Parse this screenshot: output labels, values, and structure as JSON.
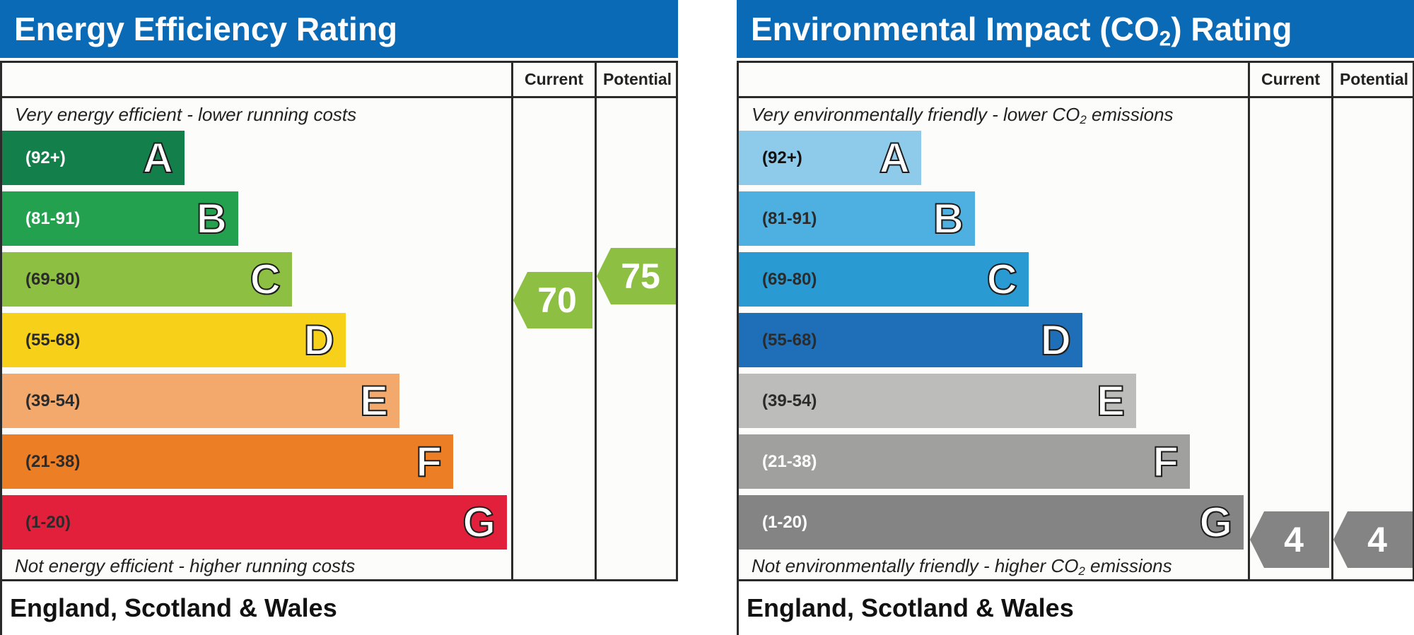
{
  "chart_data": [
    {
      "type": "bar",
      "title": "Energy Efficiency Rating",
      "top_note": "Very energy efficient - lower running costs",
      "bottom_note": "Not energy efficient - higher running costs",
      "columns": [
        "Current",
        "Potential"
      ],
      "bands": [
        {
          "letter": "A",
          "range": "(92+)",
          "color": "#137f4a",
          "text_color": "#ffffff"
        },
        {
          "letter": "B",
          "range": "(81-91)",
          "color": "#23a14f",
          "text_color": "#ffffff"
        },
        {
          "letter": "C",
          "range": "(69-80)",
          "color": "#8dbf43",
          "text_color": "#2b2b2b"
        },
        {
          "letter": "D",
          "range": "(55-68)",
          "color": "#f7d019",
          "text_color": "#2b2b2b"
        },
        {
          "letter": "E",
          "range": "(39-54)",
          "color": "#f2a96b",
          "text_color": "#2b2b2b"
        },
        {
          "letter": "F",
          "range": "(21-38)",
          "color": "#ec7f25",
          "text_color": "#2b2b2b"
        },
        {
          "letter": "G",
          "range": "(1-20)",
          "color": "#e3203b",
          "text_color": "#2b2b2b"
        }
      ],
      "current": {
        "value": "70",
        "band": "C",
        "color": "#8dbf43"
      },
      "potential": {
        "value": "75",
        "band": "C",
        "color": "#8dbf43"
      },
      "footer": "England, Scotland & Wales"
    },
    {
      "type": "bar",
      "title": "Environmental Impact (CO2) Rating",
      "top_note": "Very environmentally friendly - lower CO2 emissions",
      "bottom_note": "Not environmentally friendly - higher CO2 emissions",
      "columns": [
        "Current",
        "Potential"
      ],
      "bands": [
        {
          "letter": "A",
          "range": "(92+)",
          "color": "#8ecae9",
          "text_color": "#111111"
        },
        {
          "letter": "B",
          "range": "(81-91)",
          "color": "#4eb0e0",
          "text_color": "#2b2b2b"
        },
        {
          "letter": "C",
          "range": "(69-80)",
          "color": "#2a9ad3",
          "text_color": "#2b2b2b"
        },
        {
          "letter": "D",
          "range": "(55-68)",
          "color": "#1e6fb8",
          "text_color": "#2b2b2b"
        },
        {
          "letter": "E",
          "range": "(39-54)",
          "color": "#bcbcba",
          "text_color": "#2b2b2b"
        },
        {
          "letter": "F",
          "range": "(21-38)",
          "color": "#a0a09f",
          "text_color": "#ffffff"
        },
        {
          "letter": "G",
          "range": "(1-20)",
          "color": "#848484",
          "text_color": "#ffffff"
        }
      ],
      "current": {
        "value": "4",
        "band": "G",
        "color": "#848484"
      },
      "potential": {
        "value": "4",
        "band": "G",
        "color": "#848484"
      },
      "footer": "England, Scotland & Wales"
    }
  ]
}
